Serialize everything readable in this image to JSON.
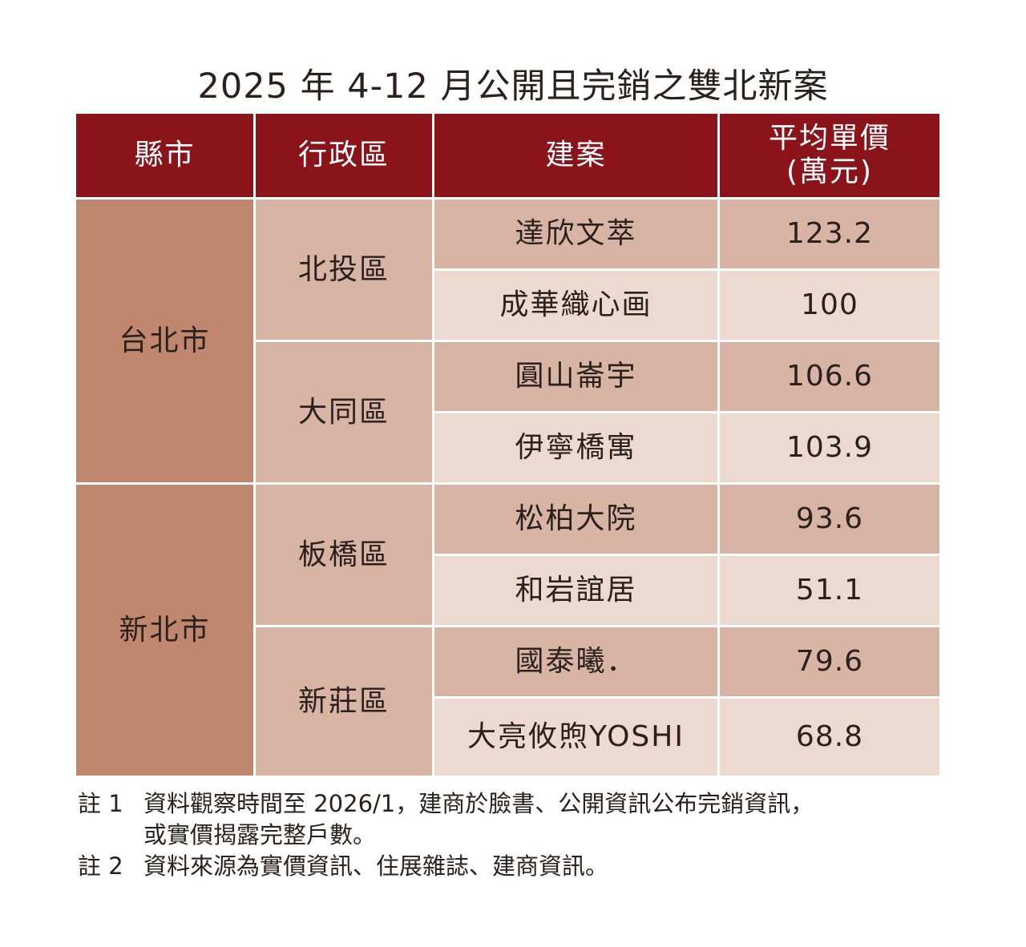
{
  "title": "2025 年 4-12 月公開且完銷之雙北新案",
  "colors": {
    "header": "#8b141b",
    "city": "#c0876f",
    "district": "#d7b4a4",
    "row_dark": "#d7b4a4",
    "row_light": "#ecdad1"
  },
  "chart_data": {
    "type": "table",
    "title": "2025 年 4-12 月公開且完銷之雙北新案",
    "columns": [
      "縣市",
      "行政區",
      "建案",
      "平均單價\n(萬元)"
    ],
    "cities": [
      {
        "name": "台北市",
        "districts": [
          {
            "name": "北投區",
            "projects": [
              {
                "name": "達欣文萃",
                "price": "123.2"
              },
              {
                "name": "成華織心画",
                "price": "100"
              }
            ]
          },
          {
            "name": "大同區",
            "projects": [
              {
                "name": "圓山崙宇",
                "price": "106.6"
              },
              {
                "name": "伊寧橋寓",
                "price": "103.9"
              }
            ]
          }
        ]
      },
      {
        "name": "新北市",
        "districts": [
          {
            "name": "板橋區",
            "projects": [
              {
                "name": "松柏大院",
                "price": "93.6"
              },
              {
                "name": "和岩誼居",
                "price": "51.1"
              }
            ]
          },
          {
            "name": "新莊區",
            "projects": [
              {
                "name": "國泰曦．",
                "price": "79.6"
              },
              {
                "name": "大亮攸煦YOSHI",
                "price": "68.8"
              }
            ]
          }
        ]
      }
    ]
  },
  "header": {
    "col1": "縣市",
    "col2": "行政區",
    "col3": "建案",
    "col4_line1": "平均單價",
    "col4_line2": "(萬元)"
  },
  "notes": [
    {
      "label": "註 1",
      "lines": [
        "資料觀察時間至 2026/1，建商於臉書、公開資訊公布完銷資訊，",
        "或實價揭露完整戶數。"
      ]
    },
    {
      "label": "註 2",
      "lines": [
        "資料來源為實價資訊、住展雜誌、建商資訊。"
      ]
    }
  ]
}
